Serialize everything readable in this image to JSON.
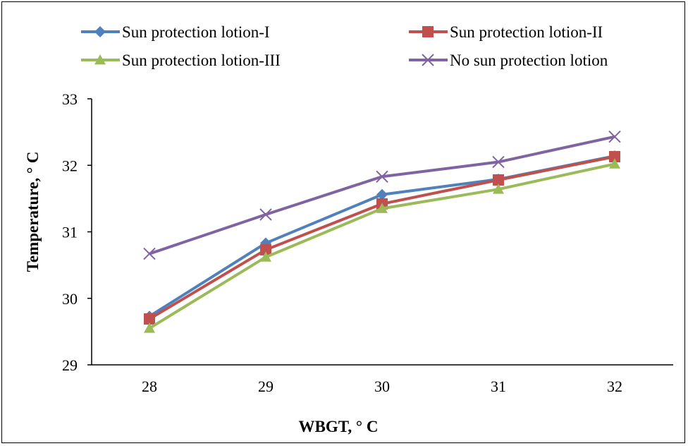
{
  "chart_data": {
    "type": "line",
    "title": "",
    "xlabel": "WBGT, ° C",
    "ylabel": "Temperature, ° C",
    "categories": [
      28,
      29,
      30,
      31,
      32
    ],
    "x_tick_labels": [
      "28",
      "29",
      "30",
      "31",
      "32"
    ],
    "ylim": [
      29,
      33
    ],
    "y_tick_labels": [
      "29",
      "30",
      "31",
      "32",
      "33"
    ],
    "grid": false,
    "legend_position": "top",
    "series": [
      {
        "name": "Sun protection lotion-I",
        "color": "#4F81BD",
        "marker": "diamond",
        "values": [
          29.73,
          30.83,
          31.56,
          31.79,
          32.14
        ]
      },
      {
        "name": "Sun protection lotion-II",
        "color": "#C0504D",
        "marker": "square",
        "values": [
          29.69,
          30.73,
          31.42,
          31.78,
          32.13
        ]
      },
      {
        "name": "Sun protection lotion-III",
        "color": "#9BBB59",
        "marker": "triangle",
        "values": [
          29.55,
          30.62,
          31.35,
          31.64,
          32.02
        ]
      },
      {
        "name": "No sun protection lotion",
        "color": "#8064A2",
        "marker": "x",
        "values": [
          30.67,
          31.26,
          31.83,
          32.05,
          32.43
        ]
      }
    ]
  }
}
